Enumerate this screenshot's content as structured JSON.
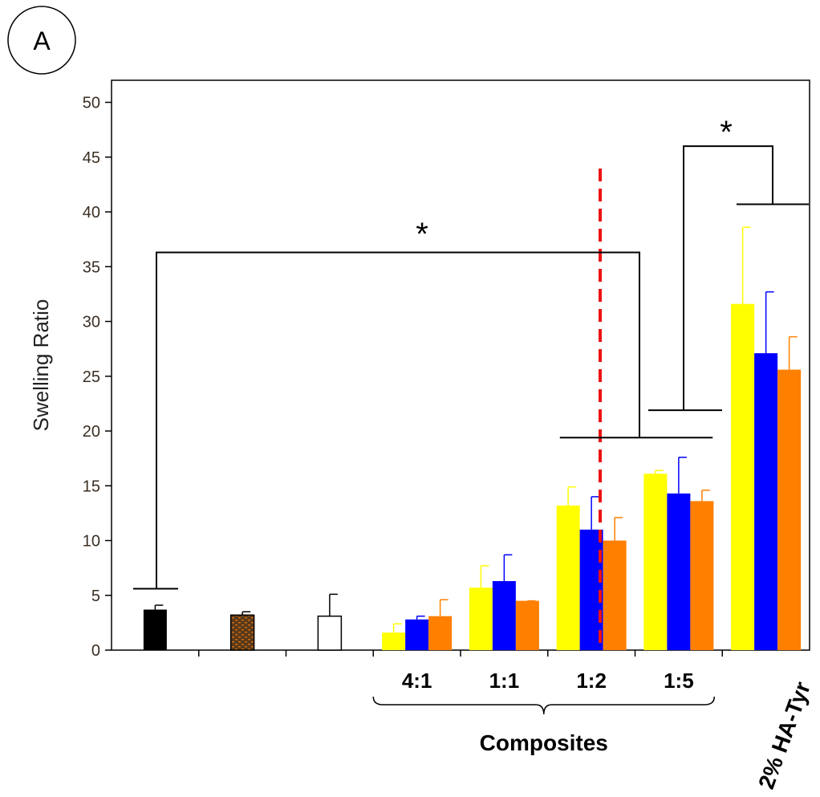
{
  "panel_label": "A",
  "chart_data": {
    "type": "bar",
    "ylabel": "Swelling Ratio",
    "ylim": [
      0,
      50
    ],
    "yticks": [
      0,
      5,
      10,
      15,
      20,
      25,
      30,
      35,
      40,
      45,
      50
    ],
    "groups": [
      {
        "label": "",
        "bars": [
          {
            "value": 3.7,
            "error": 0.4,
            "style": "black"
          }
        ]
      },
      {
        "label": "",
        "bars": [
          {
            "value": 3.2,
            "error": 0.3,
            "style": "patterned-brown"
          }
        ]
      },
      {
        "label": "",
        "bars": [
          {
            "value": 3.1,
            "error": 2.0,
            "style": "white"
          }
        ]
      },
      {
        "label": "4:1",
        "bars": [
          {
            "value": 1.6,
            "error": 0.8,
            "color": "#ffff00"
          },
          {
            "value": 2.8,
            "error": 0.3,
            "color": "#0000ff"
          },
          {
            "value": 3.1,
            "error": 1.5,
            "color": "#ff7f00"
          }
        ]
      },
      {
        "label": "1:1",
        "bars": [
          {
            "value": 5.7,
            "error": 2.0,
            "color": "#ffff00"
          },
          {
            "value": 6.3,
            "error": 2.4,
            "color": "#0000ff"
          },
          {
            "value": 4.5,
            "error": 0.0,
            "color": "#ff7f00"
          }
        ]
      },
      {
        "label": "1:2",
        "bars": [
          {
            "value": 13.2,
            "error": 1.7,
            "color": "#ffff00"
          },
          {
            "value": 11.0,
            "error": 3.0,
            "color": "#0000ff"
          },
          {
            "value": 10.0,
            "error": 2.1,
            "color": "#ff7f00"
          }
        ]
      },
      {
        "label": "1:5",
        "bars": [
          {
            "value": 16.1,
            "error": 0.3,
            "color": "#ffff00"
          },
          {
            "value": 14.3,
            "error": 3.3,
            "color": "#0000ff"
          },
          {
            "value": 13.6,
            "error": 1.0,
            "color": "#ff7f00"
          }
        ]
      },
      {
        "label": "2% HA-Tyr",
        "bars": [
          {
            "value": 31.6,
            "error": 7.0,
            "color": "#ffff00"
          },
          {
            "value": 27.1,
            "error": 5.6,
            "color": "#0000ff"
          },
          {
            "value": 25.6,
            "error": 3.0,
            "color": "#ff7f00"
          }
        ]
      }
    ],
    "group_bracket_label": "Composites",
    "divider_at": 5.6,
    "divider_color": "#ee1111",
    "significance_markers": [
      "*",
      "*"
    ]
  }
}
